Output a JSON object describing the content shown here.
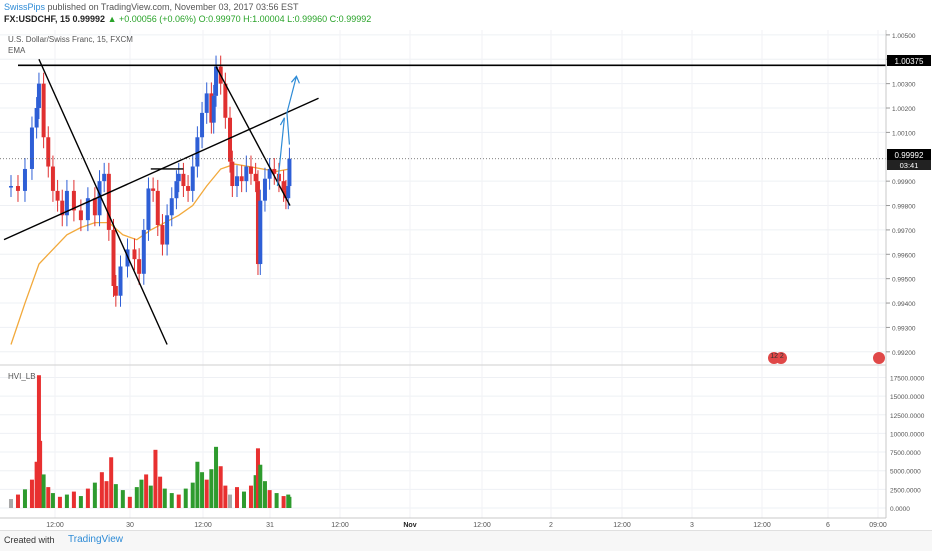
{
  "header": {
    "author": "SwissPips",
    "published": "published on TradingView.com, November 03, 2017 03:56 EST",
    "symbol": "FX:USDCHF, 15",
    "price": "0.99992",
    "change": "▲ +0.00056 (+0.06%)",
    "ohlc": "O:0.99970 H:1.00004 L:0.99960 C:0.99992"
  },
  "legend": {
    "title": "U.S. Dollar/Swiss Franc, 15, FXCM",
    "ema": "EMA",
    "volume_pane": "HVI_LB"
  },
  "badges": {
    "resistance_level": "1.00375",
    "last_price": "0.99992",
    "countdown": "03:41",
    "event_label": "12 2"
  },
  "footer": {
    "created_with": "Created with",
    "brand": "TradingView"
  },
  "colors": {
    "bull_candle": "#2e5fd6",
    "bear_candle": "#e03030",
    "ema": "#f2a93b",
    "trendline": "#000000",
    "projection": "#2e8bd6",
    "vol_green": "#2e9b2e",
    "vol_red": "#e83030",
    "vol_gray": "#a8a8a8"
  },
  "chart_data": {
    "type": "line",
    "title": "U.S. Dollar/Swiss Franc, 15, FXCM",
    "price_axis": {
      "ticks": [
        "1.00500",
        "1.00400",
        "1.00300",
        "1.00200",
        "1.00100",
        "0.99900",
        "0.99800",
        "0.99700",
        "0.99600",
        "0.99500",
        "0.99400",
        "0.99300",
        "0.99200"
      ],
      "ylim": [
        0.9915,
        1.0052
      ]
    },
    "volume_axis": {
      "ticks": [
        "17500.0000",
        "15000.0000",
        "12500.0000",
        "10000.0000",
        "7500.0000",
        "5000.0000",
        "2500.0000",
        "0.0000"
      ],
      "ylim": [
        0,
        18500
      ]
    },
    "time_axis": {
      "ticks": [
        "12:00",
        "30",
        "12:00",
        "31",
        "12:00",
        "Nov",
        "12:00",
        "2",
        "12:00",
        "3",
        "12:00",
        "6",
        "09:00"
      ]
    },
    "price_series": {
      "name": "USDCHF close",
      "points": [
        [
          "Oct 30 00:00",
          0.9988
        ],
        [
          "Oct 30 03:00",
          0.9986
        ],
        [
          "Oct 30 06:00",
          0.9995
        ],
        [
          "Oct 30 09:00",
          1.0012
        ],
        [
          "Oct 30 11:00",
          1.002
        ],
        [
          "Oct 30 12:00",
          1.003
        ],
        [
          "Oct 30 14:00",
          1.0008
        ],
        [
          "Oct 30 16:00",
          0.9996
        ],
        [
          "Oct 30 18:00",
          0.9986
        ],
        [
          "Oct 30 20:00",
          0.9982
        ],
        [
          "Oct 30 22:00",
          0.9976
        ],
        [
          "Oct 31 00:00",
          0.9986
        ],
        [
          "Oct 31 03:00",
          0.9978
        ],
        [
          "Oct 31 06:00",
          0.9974
        ],
        [
          "Oct 31 09:00",
          0.9983
        ],
        [
          "Oct 31 12:00",
          0.9976
        ],
        [
          "Oct 31 14:00",
          0.999
        ],
        [
          "Oct 31 16:00",
          0.9993
        ],
        [
          "Oct 31 18:00",
          0.997
        ],
        [
          "Oct 31 20:00",
          0.9947
        ],
        [
          "Oct 31 21:00",
          0.9943
        ],
        [
          "Oct 31 23:00",
          0.9955
        ],
        [
          "Nov 01 02:00",
          0.9962
        ],
        [
          "Nov 01 05:00",
          0.9958
        ],
        [
          "Nov 01 07:00",
          0.9952
        ],
        [
          "Nov 01 09:00",
          0.997
        ],
        [
          "Nov 01 11:00",
          0.9987
        ],
        [
          "Nov 01 13:00",
          0.9986
        ],
        [
          "Nov 01 15:00",
          0.9972
        ],
        [
          "Nov 01 17:00",
          0.9964
        ],
        [
          "Nov 01 19:00",
          0.9976
        ],
        [
          "Nov 01 21:00",
          0.9983
        ],
        [
          "Nov 01 23:00",
          0.999
        ],
        [
          "Nov 02 00:00",
          0.9993
        ],
        [
          "Nov 02 02:00",
          0.9988
        ],
        [
          "Nov 02 04:00",
          0.9986
        ],
        [
          "Nov 02 06:00",
          0.9996
        ],
        [
          "Nov 02 08:00",
          1.0008
        ],
        [
          "Nov 02 10:00",
          1.0018
        ],
        [
          "Nov 02 12:00",
          1.0026
        ],
        [
          "Nov 02 14:00",
          1.0014
        ],
        [
          "Nov 02 15:00",
          1.0025
        ],
        [
          "Nov 02 16:00",
          1.0037
        ],
        [
          "Nov 02 18:00",
          1.003
        ],
        [
          "Nov 02 20:00",
          1.0016
        ],
        [
          "Nov 02 22:00",
          0.9998
        ],
        [
          "Nov 02 23:00",
          0.9988
        ],
        [
          "Nov 03 01:00",
          0.9992
        ],
        [
          "Nov 03 03:00",
          0.999
        ],
        [
          "Nov 03 05:00",
          0.9996
        ],
        [
          "Nov 03 07:00",
          0.9993
        ],
        [
          "Nov 03 09:00",
          0.999
        ],
        [
          "Nov 03 10:00",
          0.9956
        ],
        [
          "Nov 03 11:00",
          0.9982
        ],
        [
          "Nov 03 13:00",
          0.9991
        ],
        [
          "Nov 03 15:00",
          0.9995
        ],
        [
          "Nov 03 17:00",
          0.9993
        ],
        [
          "Nov 03 19:00",
          0.999
        ],
        [
          "Nov 03 21:00",
          0.9986
        ],
        [
          "Nov 03 22:00",
          0.9983
        ],
        [
          "Nov 03 23:00",
          0.9988
        ],
        [
          "Nov 03 23:30",
          0.99992
        ]
      ]
    },
    "ema_series": {
      "points": [
        [
          "Oct 30 00:00",
          0.9923
        ],
        [
          "Oct 30 06:00",
          0.994
        ],
        [
          "Oct 30 12:00",
          0.9956
        ],
        [
          "Oct 30 18:00",
          0.9962
        ],
        [
          "Oct 31 00:00",
          0.9968
        ],
        [
          "Oct 31 06:00",
          0.9971
        ],
        [
          "Oct 31 12:00",
          0.9973
        ],
        [
          "Oct 31 18:00",
          0.9973
        ],
        [
          "Nov 01 00:00",
          0.9968
        ],
        [
          "Nov 01 06:00",
          0.9966
        ],
        [
          "Nov 01 12:00",
          0.997
        ],
        [
          "Nov 01 18:00",
          0.9973
        ],
        [
          "Nov 02 00:00",
          0.9976
        ],
        [
          "Nov 02 06:00",
          0.998
        ],
        [
          "Nov 02 12:00",
          0.9988
        ],
        [
          "Nov 02 18:00",
          0.9995
        ],
        [
          "Nov 03 00:00",
          0.9997
        ],
        [
          "Nov 03 06:00",
          0.9996
        ],
        [
          "Nov 03 12:00",
          0.9995
        ],
        [
          "Nov 03 18:00",
          0.9994
        ],
        [
          "Nov 03 23:30",
          0.9995
        ]
      ]
    },
    "volume_series": {
      "name": "HVI_LB",
      "points": [
        [
          "Oct 30 00:00",
          1200,
          "gray"
        ],
        [
          "Oct 30 03:00",
          1800,
          "red"
        ],
        [
          "Oct 30 06:00",
          2500,
          "green"
        ],
        [
          "Oct 30 09:00",
          3800,
          "red"
        ],
        [
          "Oct 30 11:00",
          6200,
          "red"
        ],
        [
          "Oct 30 12:00",
          17800,
          "red"
        ],
        [
          "Oct 30 12:30",
          9000,
          "red"
        ],
        [
          "Oct 30 14:00",
          4500,
          "green"
        ],
        [
          "Oct 30 16:00",
          2800,
          "red"
        ],
        [
          "Oct 30 18:00",
          2000,
          "green"
        ],
        [
          "Oct 30 21:00",
          1500,
          "red"
        ],
        [
          "Oct 31 00:00",
          1800,
          "green"
        ],
        [
          "Oct 31 03:00",
          2200,
          "red"
        ],
        [
          "Oct 31 06:00",
          1600,
          "green"
        ],
        [
          "Oct 31 09:00",
          2600,
          "red"
        ],
        [
          "Oct 31 12:00",
          3400,
          "green"
        ],
        [
          "Oct 31 15:00",
          4800,
          "red"
        ],
        [
          "Oct 31 17:00",
          3600,
          "red"
        ],
        [
          "Oct 31 19:00",
          6800,
          "red"
        ],
        [
          "Oct 31 21:00",
          3200,
          "green"
        ],
        [
          "Nov 01 00:00",
          2400,
          "green"
        ],
        [
          "Nov 01 03:00",
          1500,
          "red"
        ],
        [
          "Nov 01 06:00",
          2800,
          "green"
        ],
        [
          "Nov 01 08:00",
          3800,
          "green"
        ],
        [
          "Nov 01 10:00",
          4500,
          "red"
        ],
        [
          "Nov 01 12:00",
          3000,
          "green"
        ],
        [
          "Nov 01 14:00",
          7800,
          "red"
        ],
        [
          "Nov 01 16:00",
          4200,
          "red"
        ],
        [
          "Nov 01 18:00",
          2600,
          "green"
        ],
        [
          "Nov 01 21:00",
          2000,
          "green"
        ],
        [
          "Nov 02 00:00",
          1800,
          "red"
        ],
        [
          "Nov 02 03:00",
          2600,
          "green"
        ],
        [
          "Nov 02 06:00",
          3400,
          "green"
        ],
        [
          "Nov 02 08:00",
          6200,
          "green"
        ],
        [
          "Nov 02 10:00",
          4800,
          "green"
        ],
        [
          "Nov 02 12:00",
          3800,
          "red"
        ],
        [
          "Nov 02 14:00",
          5200,
          "green"
        ],
        [
          "Nov 02 16:00",
          8200,
          "green"
        ],
        [
          "Nov 02 18:00",
          5600,
          "red"
        ],
        [
          "Nov 02 20:00",
          3000,
          "red"
        ],
        [
          "Nov 02 22:00",
          1800,
          "gray"
        ],
        [
          "Nov 03 01:00",
          2800,
          "red"
        ],
        [
          "Nov 03 04:00",
          2200,
          "green"
        ],
        [
          "Nov 03 07:00",
          3000,
          "red"
        ],
        [
          "Nov 03 09:00",
          4400,
          "green"
        ],
        [
          "Nov 03 10:00",
          8000,
          "red"
        ],
        [
          "Nov 03 11:00",
          5800,
          "green"
        ],
        [
          "Nov 03 13:00",
          3600,
          "green"
        ],
        [
          "Nov 03 15:00",
          2400,
          "red"
        ],
        [
          "Nov 03 18:00",
          2000,
          "green"
        ],
        [
          "Nov 03 21:00",
          1600,
          "red"
        ],
        [
          "Nov 03 23:00",
          1800,
          "green"
        ],
        [
          "Nov 03 23:30",
          1500,
          "green"
        ]
      ]
    },
    "drawings": [
      {
        "kind": "horizontal resistance",
        "level": 1.00375
      },
      {
        "kind": "descending trendline",
        "from": [
          "Oct 30 12:00",
          1.004
        ],
        "to": [
          "Nov 01 19:00",
          0.9923
        ]
      },
      {
        "kind": "ascending trendline",
        "from": [
          "Oct 29 21:00",
          0.9966
        ],
        "to": [
          "Nov 04 12:00",
          1.0024
        ]
      },
      {
        "kind": "descending trendline",
        "from": [
          "Nov 02 16:00",
          1.0037
        ],
        "to": [
          "Nov 03 23:45",
          0.998
        ]
      },
      {
        "kind": "horizontal level",
        "from": [
          "Nov 01 12:00",
          0.9995
        ],
        "to": [
          "Nov 02 02:00",
          0.9995
        ]
      },
      {
        "kind": "projection arrows",
        "from": [
          "Nov 03 23:30",
          1.0005
        ],
        "to": [
          "Nov 04 02:30",
          1.0033
        ]
      }
    ]
  }
}
